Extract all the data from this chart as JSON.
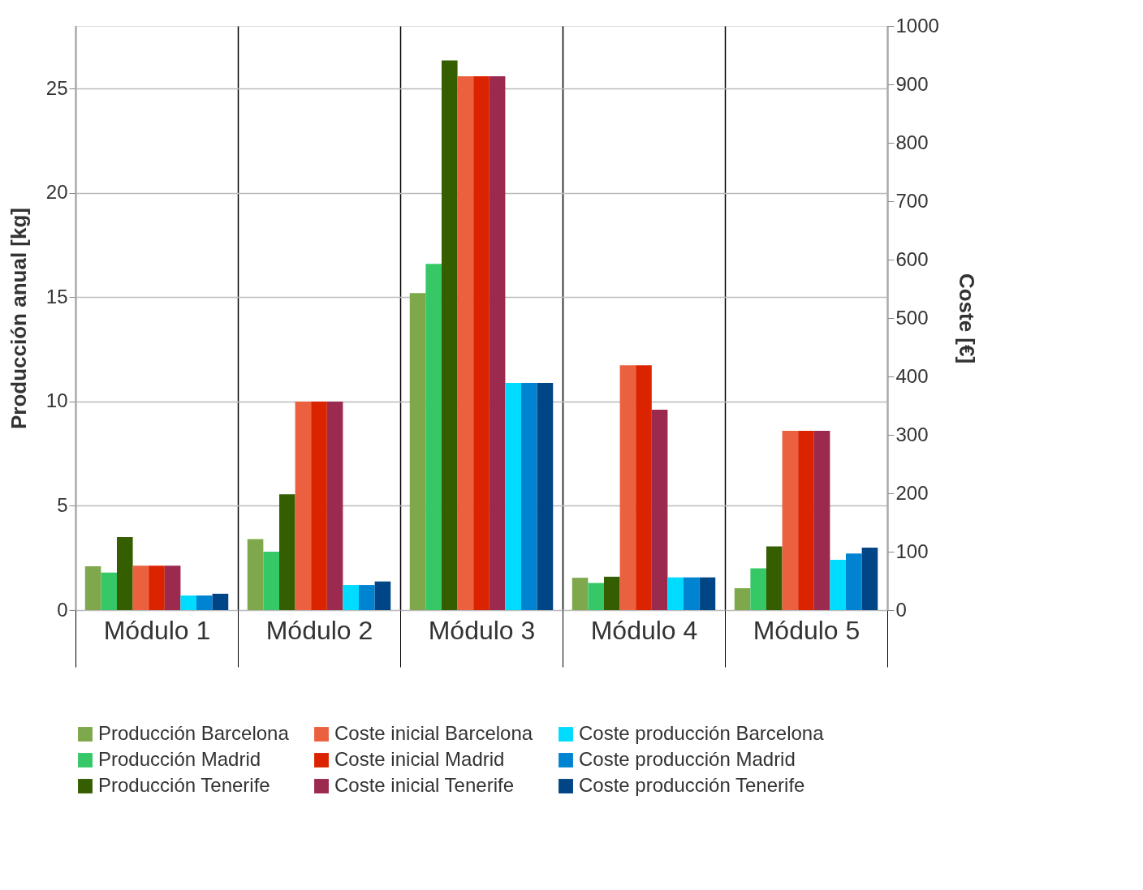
{
  "chart_data": {
    "type": "bar",
    "categories": [
      "Módulo 1",
      "Módulo 2",
      "Módulo 3",
      "Módulo 4",
      "Módulo 5"
    ],
    "ylabel": "Producción anual [kg]",
    "y2label": "Coste [€]",
    "ylim": [
      0,
      28
    ],
    "yticks": [
      0,
      5,
      10,
      15,
      20,
      25
    ],
    "y2lim": [
      0,
      1000
    ],
    "y2ticks": [
      0,
      100,
      200,
      300,
      400,
      500,
      600,
      700,
      800,
      900,
      1000
    ],
    "grid": true,
    "legend": "bottom",
    "series": [
      {
        "name": "Producción Barcelona",
        "color": "#7ea84b",
        "values": [
          2.1,
          3.4,
          15.2,
          1.55,
          1.05
        ]
      },
      {
        "name": "Producción Madrid",
        "color": "#36c866",
        "values": [
          1.8,
          2.8,
          16.6,
          1.3,
          2.0
        ]
      },
      {
        "name": "Producción Tenerife",
        "color": "#355e00",
        "values": [
          3.5,
          5.55,
          26.35,
          1.6,
          3.05
        ]
      },
      {
        "name": "Coste inicial Barcelona",
        "color": "#eb6140",
        "axis": "y2",
        "values": [
          76,
          357,
          914,
          419,
          307
        ]
      },
      {
        "name": "Coste inicial Madrid",
        "color": "#dc2300",
        "axis": "y2",
        "values": [
          76,
          357,
          914,
          419,
          307
        ]
      },
      {
        "name": "Coste inicial Tenerife",
        "color": "#9c2a4e",
        "axis": "y2",
        "values": [
          76,
          357,
          914,
          343,
          307
        ]
      },
      {
        "name": "Coste producción Barcelona",
        "color": "#00dcff",
        "axis": "y2",
        "values": [
          25,
          43,
          389,
          56,
          86
        ]
      },
      {
        "name": "Coste producción Madrid",
        "color": "#0084d1",
        "axis": "y2",
        "values": [
          25,
          43,
          389,
          56,
          97
        ]
      },
      {
        "name": "Coste producción Tenerife",
        "color": "#004586",
        "axis": "y2",
        "values": [
          28,
          49,
          389,
          56,
          107
        ]
      }
    ]
  }
}
